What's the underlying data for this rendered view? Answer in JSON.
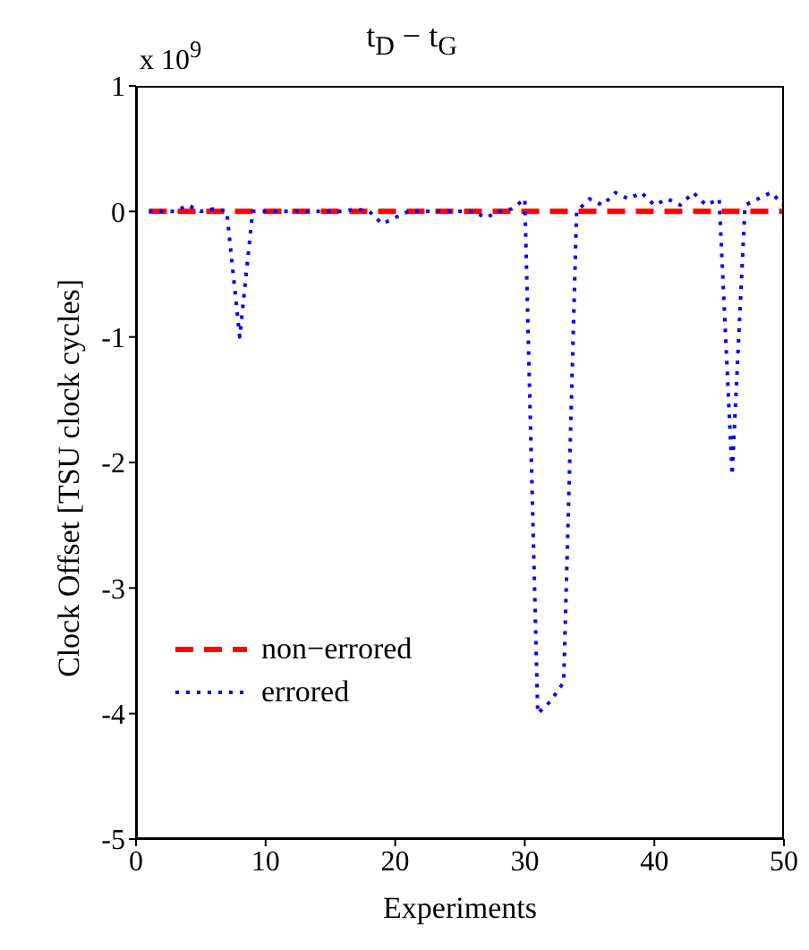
{
  "chart_data": {
    "type": "line",
    "title": "t$_{D}$ − t$_{G}$",
    "xlabel": "Experiments",
    "ylabel": "Clock Offset [TSU clock cycles]",
    "annotations": [
      "x 10$^{9}$"
    ],
    "xlim": [
      0,
      50
    ],
    "xticks": [
      0,
      10,
      20,
      30,
      40,
      50
    ],
    "ylim": [
      -5,
      1
    ],
    "yticks": [
      -5,
      -4,
      -3,
      -2,
      -1,
      0,
      1
    ],
    "grid": false,
    "legend": "bottom left",
    "marker": "none",
    "series": [
      {
        "name": "non−errored",
        "color": "#ff0000",
        "line_style": "dashed",
        "x": [
          1,
          50
        ],
        "values": [
          0,
          0
        ]
      },
      {
        "name": "errored",
        "color": "#0000ff",
        "line_style": "dotted",
        "x": [
          1,
          2,
          3,
          4,
          5,
          6,
          7,
          8,
          9,
          10,
          11,
          12,
          13,
          14,
          15,
          16,
          17,
          18,
          19,
          20,
          21,
          22,
          23,
          24,
          25,
          26,
          27,
          28,
          29,
          30,
          31,
          32,
          33,
          34,
          35,
          36,
          37,
          38,
          39,
          40,
          41,
          42,
          43,
          44,
          45,
          46,
          47,
          48,
          49,
          50
        ],
        "values": [
          0,
          0,
          0,
          0.05,
          0,
          0.02,
          0,
          -1.0,
          0,
          0,
          0,
          0,
          0,
          0,
          0,
          0,
          0.02,
          0,
          -0.1,
          -0.05,
          0,
          0,
          0,
          0,
          0,
          0,
          -0.05,
          0,
          0.02,
          0.1,
          -4.0,
          -3.9,
          -3.75,
          0,
          0.1,
          0.05,
          0.15,
          0.1,
          0.15,
          0.05,
          0.1,
          0.05,
          0.15,
          0.05,
          0.1,
          -2.1,
          0.05,
          0.1,
          0.15,
          0.05
        ]
      }
    ]
  }
}
